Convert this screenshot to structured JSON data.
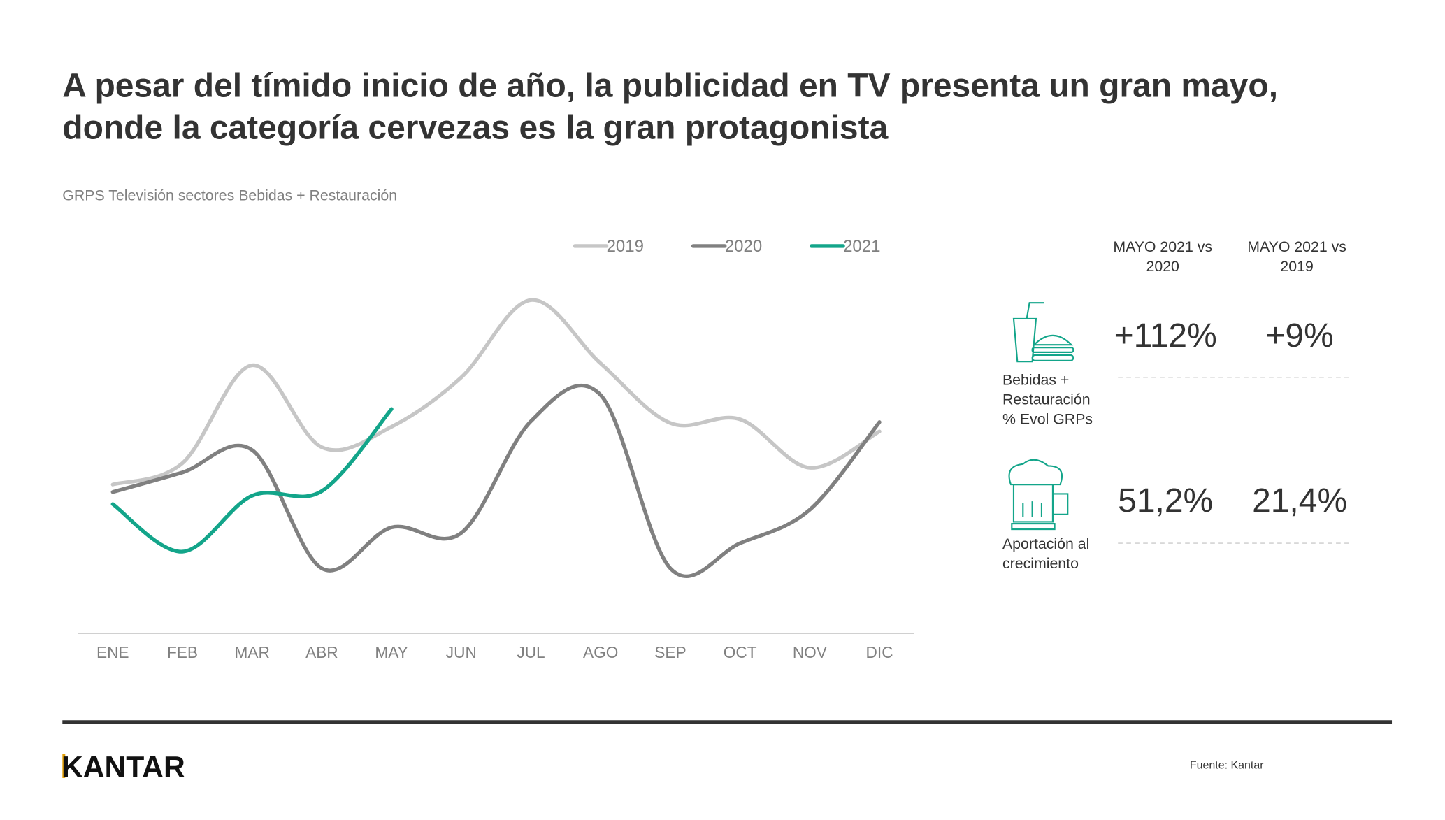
{
  "header": {
    "title_lines": [
      "A pesar del tímido inicio de año, la publicidad en TV presenta un gran mayo,",
      "donde la categoría cervezas es la gran protagonista"
    ]
  },
  "chart_data": {
    "type": "line",
    "subtitle": "GRPS Televisión sectores Bebidas + Restauración",
    "categories": [
      "ENE",
      "FEB",
      "MAR",
      "ABR",
      "MAY",
      "JUN",
      "JUL",
      "AGO",
      "SEP",
      "OCT",
      "NOV",
      "DIC"
    ],
    "ylim": [
      0,
      400
    ],
    "smooth": true,
    "legend": "top",
    "series": [
      {
        "name": "2019",
        "color": "#c6c6c6",
        "values": [
          160,
          183,
          288,
          200,
          222,
          275,
          358,
          290,
          226,
          230,
          178,
          217
        ]
      },
      {
        "name": "2020",
        "color": "#808080",
        "values": [
          152,
          173,
          197,
          70,
          114,
          108,
          228,
          256,
          70,
          97,
          133,
          227
        ]
      },
      {
        "name": "2021",
        "color": "#13a58a",
        "values": [
          139,
          88,
          148,
          153,
          241,
          null,
          null,
          null,
          null,
          null,
          null,
          null
        ]
      }
    ]
  },
  "panel": {
    "headers": [
      [
        "MAYO 2021 vs",
        "2020"
      ],
      [
        "MAYO 2021 vs",
        "2019"
      ]
    ],
    "rows": [
      {
        "label": [
          "Bebidas +",
          "Restauración",
          "% Evol GRPs"
        ],
        "values": [
          "+112%",
          "+9%"
        ]
      },
      {
        "label": [
          "Aportación al",
          "crecimiento"
        ],
        "values": [
          "51,2%",
          "21,4%"
        ]
      }
    ]
  },
  "footer": {
    "logo": "KANTAR",
    "source": "Fuente: Kantar"
  }
}
